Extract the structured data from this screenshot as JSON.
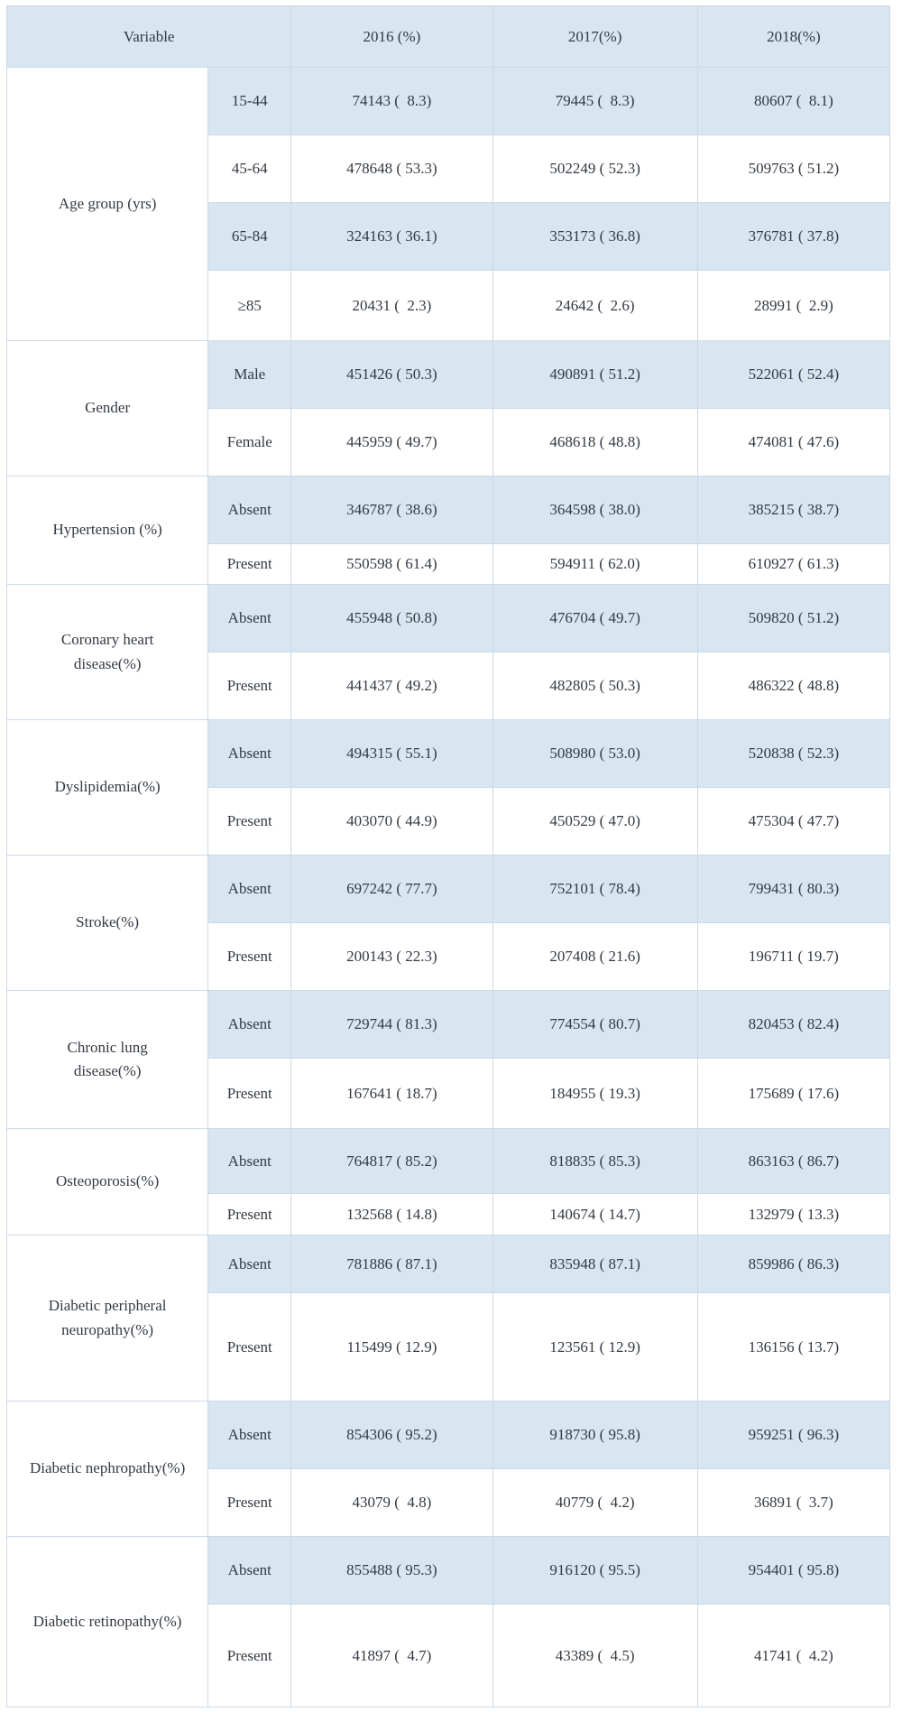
{
  "colors": {
    "stripe_blue": "#d8e6f2",
    "grid_line": "#ccd9e4",
    "text": "#333a42"
  },
  "table": {
    "header_labels": [
      "Variable",
      "2016 (%)",
      "2017(%)",
      "2018(%)"
    ],
    "groups": [
      {
        "variable": "Age group (yrs)",
        "rows": [
          {
            "category": "15-44",
            "values": [
              "74143 (  8.3)",
              "79445 (  8.3)",
              "80607 (  8.1)"
            ]
          },
          {
            "category": "45-64",
            "values": [
              "478648 ( 53.3)",
              "502249 ( 52.3)",
              "509763 ( 51.2)"
            ]
          },
          {
            "category": "65-84",
            "values": [
              "324163 ( 36.1)",
              "353173 ( 36.8)",
              "376781 ( 37.8)"
            ]
          },
          {
            "category": "≥85",
            "values": [
              "20431 (  2.3)",
              "24642 (  2.6)",
              "28991 (  2.9)"
            ]
          }
        ]
      },
      {
        "variable": "Gender",
        "rows": [
          {
            "category": "Male",
            "values": [
              "451426 ( 50.3)",
              "490891 ( 51.2)",
              "522061 ( 52.4)"
            ]
          },
          {
            "category": "Female",
            "values": [
              "445959 ( 49.7)",
              "468618 ( 48.8)",
              "474081 ( 47.6)"
            ]
          }
        ]
      },
      {
        "variable": "Hypertension (%)",
        "rows": [
          {
            "category": "Absent",
            "values": [
              "346787 ( 38.6)",
              "364598 ( 38.0)",
              "385215 ( 38.7)"
            ]
          },
          {
            "category": "Present",
            "values": [
              "550598 ( 61.4)",
              "594911 ( 62.0)",
              "610927 ( 61.3)"
            ]
          }
        ]
      },
      {
        "variable": "Coronary heart\ndisease(%)",
        "rows": [
          {
            "category": "Absent",
            "values": [
              "455948 ( 50.8)",
              "476704 ( 49.7)",
              "509820 ( 51.2)"
            ]
          },
          {
            "category": "Present",
            "values": [
              "441437 ( 49.2)",
              "482805 ( 50.3)",
              "486322 ( 48.8)"
            ]
          }
        ]
      },
      {
        "variable": "Dyslipidemia(%)",
        "rows": [
          {
            "category": "Absent",
            "values": [
              "494315 ( 55.1)",
              "508980 ( 53.0)",
              "520838 ( 52.3)"
            ]
          },
          {
            "category": "Present",
            "values": [
              "403070 ( 44.9)",
              "450529 ( 47.0)",
              "475304 ( 47.7)"
            ]
          }
        ]
      },
      {
        "variable": "Stroke(%)",
        "rows": [
          {
            "category": "Absent",
            "values": [
              "697242 ( 77.7)",
              "752101 ( 78.4)",
              "799431 ( 80.3)"
            ]
          },
          {
            "category": "Present",
            "values": [
              "200143 ( 22.3)",
              "207408 ( 21.6)",
              "196711 ( 19.7)"
            ]
          }
        ]
      },
      {
        "variable": "Chronic lung\ndisease(%)",
        "rows": [
          {
            "category": "Absent",
            "values": [
              "729744 ( 81.3)",
              "774554 ( 80.7)",
              "820453 ( 82.4)"
            ]
          },
          {
            "category": "Present",
            "values": [
              "167641 ( 18.7)",
              "184955 ( 19.3)",
              "175689 ( 17.6)"
            ]
          }
        ]
      },
      {
        "variable": "Osteoporosis(%)",
        "rows": [
          {
            "category": "Absent",
            "values": [
              "764817 ( 85.2)",
              "818835 ( 85.3)",
              "863163 ( 86.7)"
            ]
          },
          {
            "category": "Present",
            "values": [
              "132568 ( 14.8)",
              "140674 ( 14.7)",
              "132979 ( 13.3)"
            ]
          }
        ]
      },
      {
        "variable": "Diabetic peripheral\nneuropathy(%)",
        "rows": [
          {
            "category": "Absent",
            "values": [
              "781886 ( 87.1)",
              "835948 ( 87.1)",
              "859986 ( 86.3)"
            ]
          },
          {
            "category": "Present",
            "values": [
              "115499 ( 12.9)",
              "123561 ( 12.9)",
              "136156 ( 13.7)"
            ]
          }
        ]
      },
      {
        "variable": "Diabetic nephropathy(%)",
        "rows": [
          {
            "category": "Absent",
            "values": [
              "854306 ( 95.2)",
              "918730 ( 95.8)",
              "959251 ( 96.3)"
            ]
          },
          {
            "category": "Present",
            "values": [
              "43079 (  4.8)",
              "40779 (  4.2)",
              "36891 (  3.7)"
            ]
          }
        ]
      },
      {
        "variable": "Diabetic retinopathy(%)",
        "rows": [
          {
            "category": "Absent",
            "values": [
              "855488 ( 95.3)",
              "916120 ( 95.5)",
              "954401 ( 95.8)"
            ]
          },
          {
            "category": "Present",
            "values": [
              "41897 (  4.7)",
              "43389 (  4.5)",
              "41741 (  4.2)"
            ]
          }
        ]
      }
    ]
  }
}
